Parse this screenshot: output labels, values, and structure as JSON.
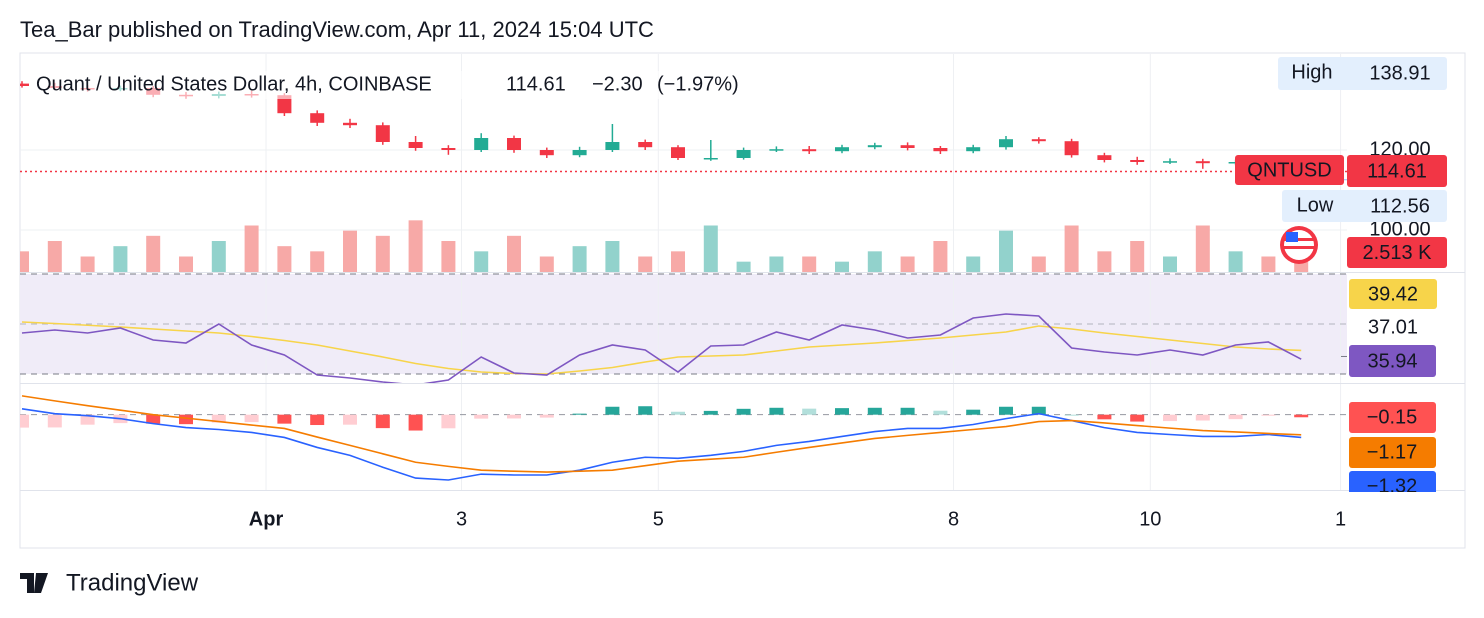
{
  "header": "Tea_Bar published on TradingView.com, Apr 11, 2024 15:04 UTC",
  "footer": "TradingView",
  "chart_data": [
    {
      "type": "candlestick",
      "title": "Quant / United States Dollar, 4h, COINBASE",
      "symbol": "QNTUSD",
      "change": {
        "value": -2.3,
        "label": "−2.30"
      },
      "change_pct": {
        "value": -1.97,
        "label": "(−1.97%)"
      },
      "high_label": "High",
      "high_value": 138.91,
      "low_label": "Low",
      "low_value": 112.56,
      "up_color": "#22ab94",
      "down_color": "#f23645",
      "open": [
        136.6,
        136.0,
        135.5,
        135.3,
        135.5,
        133.8,
        133.5,
        134.0,
        133.7,
        129.2,
        126.8,
        126.2,
        122.0,
        120.5,
        120.0,
        123.0,
        120.0,
        118.7,
        120.0,
        122.0,
        120.7,
        118.0,
        118.0,
        120.0,
        120.2,
        119.7,
        120.7,
        121.2,
        120.5,
        119.7,
        120.7,
        122.7,
        122.2,
        118.7,
        117.5,
        117.0,
        117.2,
        116.7,
        117.0,
        116.5
      ],
      "high": [
        137.2,
        136.8,
        136.2,
        136.1,
        136.0,
        134.5,
        134.6,
        134.8,
        134.2,
        129.9,
        127.8,
        126.9,
        123.5,
        121.2,
        124.2,
        123.6,
        120.6,
        120.8,
        126.5,
        122.6,
        121.2,
        122.5,
        120.6,
        120.9,
        121.0,
        121.3,
        121.8,
        121.9,
        121.0,
        121.3,
        123.5,
        123.2,
        122.8,
        119.3,
        118.3,
        117.9,
        117.8,
        117.6,
        117.7,
        117.0
      ],
      "low": [
        135.6,
        135.0,
        134.6,
        134.7,
        133.2,
        132.8,
        132.9,
        133.1,
        128.5,
        126.0,
        125.5,
        121.3,
        119.8,
        118.8,
        119.5,
        119.3,
        118.0,
        118.2,
        119.5,
        120.0,
        117.5,
        117.3,
        117.6,
        119.5,
        119.0,
        119.2,
        120.2,
        119.9,
        119.0,
        119.2,
        120.1,
        121.6,
        118.1,
        116.9,
        116.3,
        116.5,
        115.3,
        116.2,
        115.8,
        114.2
      ],
      "close": [
        136.0,
        135.5,
        135.3,
        135.5,
        133.8,
        133.5,
        134.0,
        133.7,
        129.2,
        126.8,
        126.2,
        122.0,
        120.5,
        120.0,
        123.0,
        120.0,
        118.7,
        120.0,
        122.0,
        120.7,
        118.0,
        118.0,
        120.0,
        120.2,
        119.7,
        120.7,
        121.2,
        120.5,
        119.7,
        120.7,
        122.7,
        122.2,
        118.7,
        117.5,
        117.0,
        117.2,
        116.7,
        117.0,
        116.5,
        114.61
      ],
      "ylim": [
        89.5,
        143.75
      ],
      "yticks": [
        {
          "value": 100,
          "label": "100.00"
        },
        {
          "value": 120,
          "label": "120.00"
        }
      ],
      "xticks": [
        {
          "value": 7.44,
          "label": "Apr"
        },
        {
          "value": 13.4,
          "label": "3"
        },
        {
          "value": 19.4,
          "label": "5"
        },
        {
          "value": 28.4,
          "label": "8"
        },
        {
          "value": 34.4,
          "label": "10"
        },
        {
          "value": 40.2,
          "label": "1"
        }
      ],
      "grid": true,
      "volume": {
        "values": [
          4,
          6,
          3,
          5,
          7,
          3,
          6,
          9,
          5,
          4,
          8,
          7,
          10,
          6,
          4,
          7,
          3,
          5,
          6,
          3,
          4,
          9,
          2,
          3,
          3,
          2,
          4,
          3,
          6,
          3,
          8,
          3,
          9,
          4,
          6,
          3,
          9,
          4,
          3,
          2.513
        ],
        "last_label": "2.513 K",
        "ylim": [
          0,
          12
        ],
        "up_color": "#92d2cc",
        "down_color": "#f7a9a7"
      }
    },
    {
      "type": "line",
      "series": [
        {
          "color": "#7e57c2",
          "values": [
            46.4,
            47.6,
            46.4,
            48.4,
            43.6,
            42.4,
            50.0,
            41.6,
            37.6,
            29.6,
            28.4,
            26.8,
            25.6,
            27.6,
            36.8,
            30.4,
            29.6,
            37.6,
            41.6,
            39.6,
            30.8,
            41.2,
            41.6,
            46.8,
            43.6,
            49.6,
            47.6,
            44.4,
            45.6,
            52.4,
            54.0,
            53.2,
            40.4,
            38.8,
            37.6,
            39.6,
            37.6,
            41.6,
            42.8,
            35.94
          ]
        },
        {
          "color": "#f7d44a",
          "values": [
            50.8,
            50.2,
            49.5,
            48.8,
            48.0,
            47.2,
            46.4,
            45.0,
            43.4,
            41.6,
            39.2,
            36.8,
            34.2,
            32.2,
            30.8,
            30.2,
            30.0,
            31.2,
            32.6,
            34.8,
            36.8,
            37.2,
            37.6,
            39.2,
            40.8,
            41.6,
            42.4,
            43.4,
            44.4,
            45.6,
            46.8,
            49.2,
            48.0,
            46.4,
            45.0,
            43.6,
            42.2,
            40.8,
            40.0,
            39.42
          ]
        }
      ],
      "level": 37.01,
      "ylim": [
        26.4,
        70.4
      ],
      "yticks": [
        30,
        50,
        70
      ],
      "background": "#f0ecf8"
    },
    {
      "type": "macd",
      "histogram": {
        "values": [
          -0.75,
          -0.74,
          -0.58,
          -0.49,
          -0.52,
          -0.55,
          -0.46,
          -0.43,
          -0.52,
          -0.6,
          -0.58,
          -0.78,
          -0.92,
          -0.79,
          -0.23,
          -0.22,
          -0.17,
          0.06,
          0.46,
          0.49,
          0.17,
          0.22,
          0.34,
          0.4,
          0.35,
          0.38,
          0.4,
          0.4,
          0.23,
          0.29,
          0.46,
          0.46,
          0.0,
          -0.27,
          -0.4,
          -0.37,
          -0.34,
          -0.26,
          -0.06,
          -0.15
        ],
        "last_label": "−0.15",
        "colors": [
          "#26a69a",
          "#b2dfdb",
          "#ff5252",
          "#ffcdd2"
        ]
      },
      "series": [
        {
          "color": "#2962ff",
          "last_label": "−1.32",
          "values": [
            0.34,
            0.06,
            -0.06,
            -0.23,
            -0.52,
            -0.75,
            -0.86,
            -1.03,
            -1.32,
            -1.9,
            -2.36,
            -3.05,
            -3.68,
            -3.79,
            -3.45,
            -3.5,
            -3.5,
            -3.22,
            -2.76,
            -2.47,
            -2.53,
            -2.36,
            -2.13,
            -1.78,
            -1.55,
            -1.26,
            -0.98,
            -0.8,
            -0.8,
            -0.57,
            -0.23,
            0.06,
            -0.34,
            -0.75,
            -1.03,
            -1.15,
            -1.26,
            -1.26,
            -1.15,
            -1.32
          ]
        },
        {
          "color": "#f57c00",
          "last_label": "−1.17",
          "values": [
            1.09,
            0.8,
            0.52,
            0.26,
            0,
            -0.2,
            -0.4,
            -0.6,
            -0.8,
            -1.3,
            -1.78,
            -2.27,
            -2.76,
            -3.0,
            -3.22,
            -3.28,
            -3.33,
            -3.28,
            -3.22,
            -2.96,
            -2.7,
            -2.58,
            -2.47,
            -2.18,
            -1.9,
            -1.64,
            -1.38,
            -1.2,
            -1.03,
            -0.86,
            -0.69,
            -0.4,
            -0.34,
            -0.48,
            -0.63,
            -0.78,
            -0.92,
            -1.0,
            -1.09,
            -1.17
          ]
        }
      ],
      "ylim": [
        -4.37,
        1.78
      ],
      "yticks": [
        0
      ]
    }
  ]
}
